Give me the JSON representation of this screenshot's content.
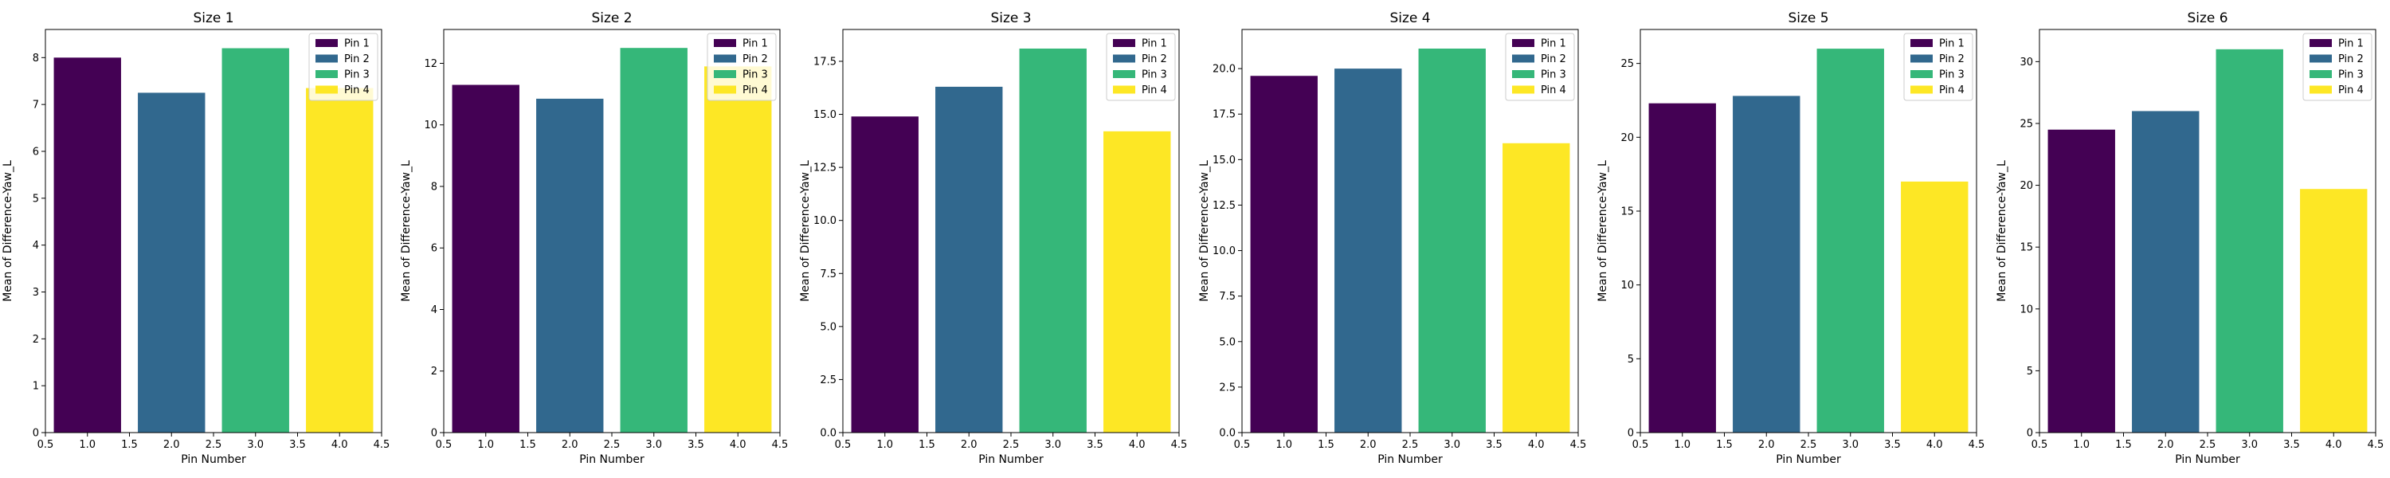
{
  "chart_data": [
    {
      "type": "bar",
      "title": "Size 1",
      "xlabel": "Pin Number",
      "ylabel": "Mean of Difference-Yaw_L",
      "x": [
        1,
        2,
        3,
        4
      ],
      "categories": [
        "Pin 1",
        "Pin 2",
        "Pin 3",
        "Pin 4"
      ],
      "values": [
        8.0,
        7.25,
        8.2,
        7.35
      ],
      "xlim": [
        0.5,
        4.5
      ],
      "xticks": [
        0.5,
        1.0,
        1.5,
        2.0,
        2.5,
        3.0,
        3.5,
        4.0,
        4.5
      ],
      "ylim": [
        0,
        8.6
      ],
      "yticks": [
        0,
        1,
        2,
        3,
        4,
        5,
        6,
        7,
        8
      ],
      "legend": "top-right",
      "grid": false
    },
    {
      "type": "bar",
      "title": "Size 2",
      "xlabel": "Pin Number",
      "ylabel": "Mean of Difference-Yaw_L",
      "x": [
        1,
        2,
        3,
        4
      ],
      "categories": [
        "Pin 1",
        "Pin 2",
        "Pin 3",
        "Pin 4"
      ],
      "values": [
        11.3,
        10.85,
        12.5,
        11.9
      ],
      "xlim": [
        0.5,
        4.5
      ],
      "xticks": [
        0.5,
        1.0,
        1.5,
        2.0,
        2.5,
        3.0,
        3.5,
        4.0,
        4.5
      ],
      "ylim": [
        0,
        13.1
      ],
      "yticks": [
        0,
        2,
        4,
        6,
        8,
        10,
        12
      ],
      "legend": "top-right",
      "grid": false
    },
    {
      "type": "bar",
      "title": "Size 3",
      "xlabel": "Pin Number",
      "ylabel": "Mean of Difference-Yaw_L",
      "x": [
        1,
        2,
        3,
        4
      ],
      "categories": [
        "Pin 1",
        "Pin 2",
        "Pin 3",
        "Pin 4"
      ],
      "values": [
        14.9,
        16.3,
        18.1,
        14.2
      ],
      "xlim": [
        0.5,
        4.5
      ],
      "xticks": [
        0.5,
        1.0,
        1.5,
        2.0,
        2.5,
        3.0,
        3.5,
        4.0,
        4.5
      ],
      "ylim": [
        0,
        19.0
      ],
      "yticks": [
        0.0,
        2.5,
        5.0,
        7.5,
        10.0,
        12.5,
        15.0,
        17.5
      ],
      "legend": "top-right",
      "grid": false
    },
    {
      "type": "bar",
      "title": "Size 4",
      "xlabel": "Pin Number",
      "ylabel": "Mean of Difference-Yaw_L",
      "x": [
        1,
        2,
        3,
        4
      ],
      "categories": [
        "Pin 1",
        "Pin 2",
        "Pin 3",
        "Pin 4"
      ],
      "values": [
        19.6,
        20.0,
        21.1,
        15.9
      ],
      "xlim": [
        0.5,
        4.5
      ],
      "xticks": [
        0.5,
        1.0,
        1.5,
        2.0,
        2.5,
        3.0,
        3.5,
        4.0,
        4.5
      ],
      "ylim": [
        0,
        22.15
      ],
      "yticks": [
        0.0,
        2.5,
        5.0,
        7.5,
        10.0,
        12.5,
        15.0,
        17.5,
        20.0
      ],
      "legend": "top-right",
      "grid": false
    },
    {
      "type": "bar",
      "title": "Size 5",
      "xlabel": "Pin Number",
      "ylabel": "Mean of Difference-Yaw_L",
      "x": [
        1,
        2,
        3,
        4
      ],
      "categories": [
        "Pin 1",
        "Pin 2",
        "Pin 3",
        "Pin 4"
      ],
      "values": [
        22.3,
        22.8,
        26.0,
        17.0
      ],
      "xlim": [
        0.5,
        4.5
      ],
      "xticks": [
        0.5,
        1.0,
        1.5,
        2.0,
        2.5,
        3.0,
        3.5,
        4.0,
        4.5
      ],
      "ylim": [
        0,
        27.3
      ],
      "yticks": [
        0,
        5,
        10,
        15,
        20,
        25
      ],
      "legend": "top-right",
      "grid": false
    },
    {
      "type": "bar",
      "title": "Size 6",
      "xlabel": "Pin Number",
      "ylabel": "Mean of Difference-Yaw_L",
      "x": [
        1,
        2,
        3,
        4
      ],
      "categories": [
        "Pin 1",
        "Pin 2",
        "Pin 3",
        "Pin 4"
      ],
      "values": [
        24.5,
        26.0,
        31.0,
        19.7
      ],
      "xlim": [
        0.5,
        4.5
      ],
      "xticks": [
        0.5,
        1.0,
        1.5,
        2.0,
        2.5,
        3.0,
        3.5,
        4.0,
        4.5
      ],
      "ylim": [
        0,
        32.6
      ],
      "yticks": [
        0,
        5,
        10,
        15,
        20,
        25,
        30
      ],
      "legend": "top-right",
      "grid": false
    }
  ],
  "colors": [
    "#440154",
    "#31688e",
    "#35b779",
    "#fde725"
  ]
}
